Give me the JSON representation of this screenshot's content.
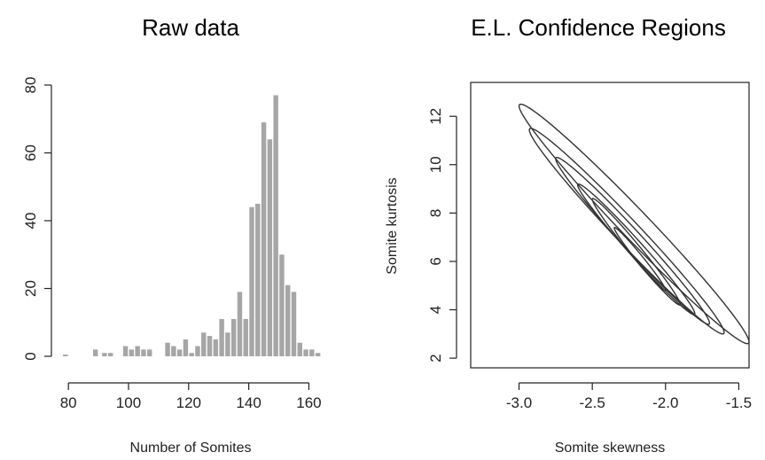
{
  "chart_data": [
    {
      "type": "bar",
      "title": "Raw data",
      "xlabel": "Number of Somites",
      "ylabel": "",
      "xlim": [
        77,
        164
      ],
      "ylim": [
        0,
        80
      ],
      "x_ticks": [
        "80",
        "100",
        "120",
        "140",
        "160"
      ],
      "y_ticks": [
        "0",
        "20",
        "40",
        "60",
        "80"
      ],
      "bar_width": 1.6,
      "x": [
        79,
        89,
        92,
        94,
        99,
        101,
        103,
        105,
        107,
        113,
        115,
        117,
        119,
        121,
        123,
        125,
        127,
        129,
        131,
        133,
        135,
        137,
        139,
        141,
        143,
        145,
        147,
        149,
        151,
        153,
        155,
        157,
        159,
        161,
        163
      ],
      "values": [
        0.5,
        2,
        1,
        1,
        3,
        2,
        3,
        2,
        2,
        4,
        3,
        2,
        5,
        1,
        3,
        7,
        6,
        5,
        11,
        7,
        11,
        19,
        11,
        44,
        45,
        69,
        64,
        77,
        30,
        21,
        19,
        4,
        2,
        2,
        1
      ]
    },
    {
      "type": "contour",
      "title": "E.L. Confidence Regions",
      "xlabel": "Somite skewness",
      "ylabel": "Somite kurtosis",
      "xlim": [
        -3.33,
        -1.43
      ],
      "ylim": [
        1.6,
        13.4
      ],
      "x_ticks": [
        "-3.0",
        "-2.5",
        "-2.0",
        "-1.5"
      ],
      "y_ticks": [
        "2",
        "4",
        "6",
        "8",
        "10",
        "12"
      ],
      "center": [
        -2.18,
        5.9
      ],
      "regions": [
        {
          "x_extent": [
            -3.0,
            -1.43
          ],
          "y_extent": [
            2.6,
            12.5
          ]
        },
        {
          "x_extent": [
            -2.93,
            -1.6
          ],
          "y_extent": [
            3.0,
            11.5
          ]
        },
        {
          "x_extent": [
            -2.75,
            -1.7
          ],
          "y_extent": [
            3.4,
            10.3
          ]
        },
        {
          "x_extent": [
            -2.6,
            -1.8
          ],
          "y_extent": [
            3.8,
            9.2
          ]
        },
        {
          "x_extent": [
            -2.5,
            -1.9
          ],
          "y_extent": [
            4.2,
            8.6
          ]
        },
        {
          "x_extent": [
            -2.35,
            -2.0
          ],
          "y_extent": [
            4.8,
            7.4
          ]
        }
      ]
    }
  ]
}
